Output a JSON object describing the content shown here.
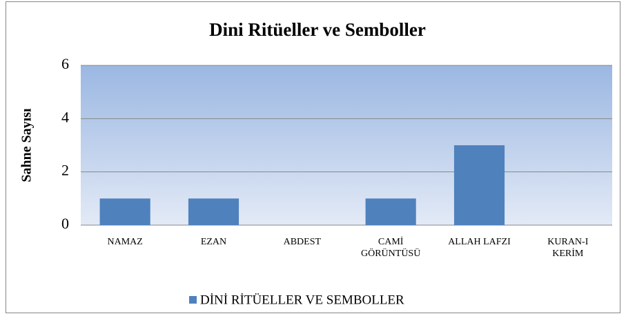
{
  "chart_data": {
    "type": "bar",
    "title": "Dini Ritüeller ve Semboller",
    "y_label": "Sahne Sayısı",
    "categories": [
      "NAMAZ",
      "EZAN",
      "ABDEST",
      "CAMİ GÖRÜNTÜSÜ",
      "ALLAH LAFZI",
      "KURAN-I KERİM"
    ],
    "series": [
      {
        "name": "DİNİ RİTÜELLER VE SEMBOLLER",
        "color": "#4f81bd",
        "values": [
          1,
          1,
          0,
          1,
          3,
          0
        ]
      }
    ],
    "ylim": [
      0,
      6
    ],
    "yticks": [
      0,
      2,
      4,
      6
    ],
    "grid": true,
    "legend": "bottom"
  }
}
